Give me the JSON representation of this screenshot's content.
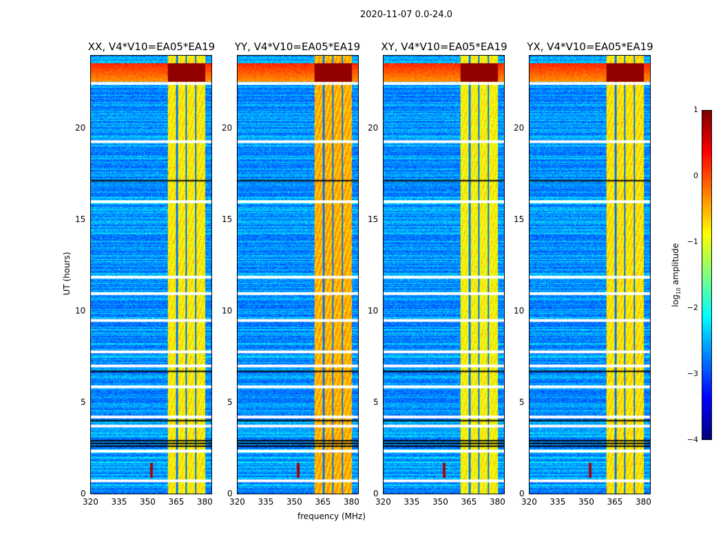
{
  "chart_data": {
    "type": "heatmap",
    "title": "2020-11-07 0.0-24.0",
    "xlabel": "frequency (MHz)",
    "ylabel": "UT (hours)",
    "xlim": [
      320,
      384
    ],
    "ylim": [
      0,
      24
    ],
    "xticks": [
      "320",
      "335",
      "350",
      "365",
      "380"
    ],
    "xtick_values": [
      320,
      335,
      350,
      365,
      380
    ],
    "yticks": [
      "0",
      "5",
      "10",
      "15",
      "20"
    ],
    "ytick_values": [
      0,
      5,
      10,
      15,
      20
    ],
    "panels": [
      {
        "title": "XX, V4*V10=EA05*EA19",
        "band_level": -0.8
      },
      {
        "title": "YY, V4*V10=EA05*EA19",
        "band_level": -0.5
      },
      {
        "title": "XY, V4*V10=EA05*EA19",
        "band_level": -0.85
      },
      {
        "title": "YX, V4*V10=EA05*EA19",
        "band_level": -0.75
      }
    ],
    "background_level": -2.8,
    "rfi_band_mhz": [
      360.7,
      380.4
    ],
    "rfi_band_gaps_mhz": [
      365.5,
      370.5,
      375.5
    ],
    "strong_rfi_hours": [
      22.6,
      23.6
    ],
    "spike": {
      "freq_mhz": 352,
      "hours": [
        0.9,
        1.7
      ]
    },
    "flagged_hours_white": [
      0.7,
      2.33,
      3.7,
      4.2,
      5.85,
      7.0,
      7.77,
      9.49,
      10.96,
      11.86,
      16.0,
      19.29,
      22.48
    ],
    "flagged_hours_black": [
      2.6,
      2.75,
      2.9,
      4.0,
      6.7,
      17.15
    ],
    "colorbar": {
      "label": "log10 amplitude",
      "label_main": "log",
      "label_sub": "10",
      "label_rest": " amplitude",
      "range": [
        -4,
        1
      ],
      "ticks": [
        "1",
        "0",
        "−1",
        "−2",
        "−3",
        "−4"
      ],
      "tick_values": [
        1,
        0,
        -1,
        -2,
        -3,
        -4
      ]
    }
  }
}
